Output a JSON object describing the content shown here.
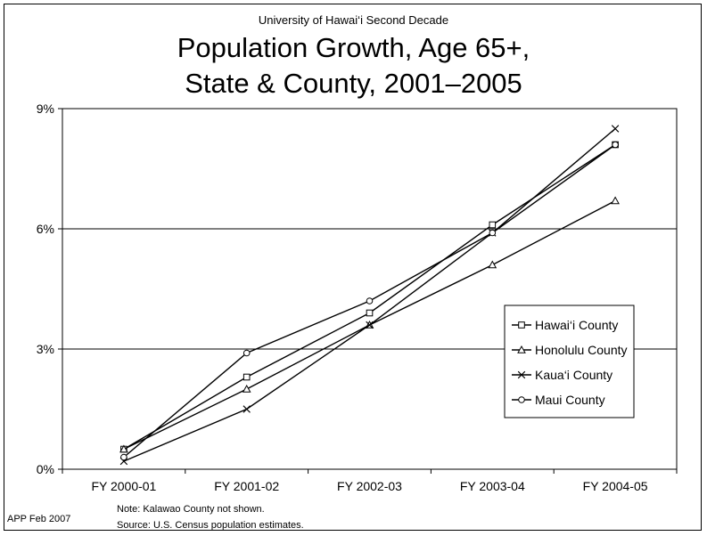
{
  "header": {
    "supertitle": "University of Hawai‘i Second Decade",
    "title_line1": "Population Growth, Age 65+,",
    "title_line2": "State & County, 2001–2005"
  },
  "footer": {
    "note": "Note:  Kalawao County not shown.",
    "source": "Source:  U.S. Census population estimates.",
    "credit": "APP Feb 2007"
  },
  "chart_data": {
    "type": "line",
    "title": "Population Growth, Age 65+, State & County, 2001–2005",
    "xlabel": "",
    "ylabel": "",
    "categories": [
      "FY 2000-01",
      "FY 2001-02",
      "FY 2002-03",
      "FY 2003-04",
      "FY 2004-05"
    ],
    "ylim": [
      0,
      9
    ],
    "yticks": [
      0,
      3,
      6,
      9
    ],
    "ytick_labels": [
      "0%",
      "3%",
      "6%",
      "9%"
    ],
    "grid": "horizontal",
    "legend_position": "right",
    "colors": {
      "line": "#000000",
      "grid": "#000000",
      "marker_fill": "#ffffff"
    },
    "series": [
      {
        "name": "Hawai‘i County",
        "marker": "square",
        "values": [
          0.5,
          2.3,
          3.9,
          6.1,
          8.1
        ]
      },
      {
        "name": "Honolulu County",
        "marker": "triangle",
        "values": [
          0.5,
          2.0,
          3.6,
          5.1,
          6.7
        ]
      },
      {
        "name": "Kaua‘i County",
        "marker": "x",
        "values": [
          0.2,
          1.5,
          3.6,
          5.9,
          8.5
        ]
      },
      {
        "name": "Maui County",
        "marker": "circle",
        "values": [
          0.3,
          2.9,
          4.2,
          5.9,
          8.1
        ]
      }
    ]
  }
}
